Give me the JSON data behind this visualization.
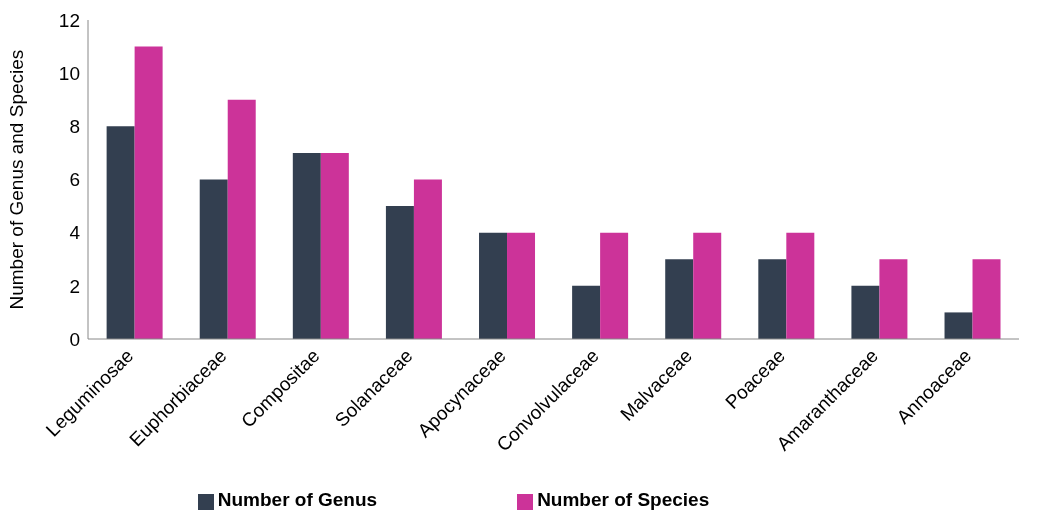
{
  "chart_data": {
    "type": "bar",
    "ylabel": "Number of Genus and Species",
    "categories": [
      "Leguminosae",
      "Euphorbiaceae",
      "Compositae",
      "Solanaceae",
      "Apocynaceae",
      "Convolvulaceae",
      "Malvaceae",
      "Poaceae",
      "Amaranthaceae",
      "Annoaceae"
    ],
    "series": [
      {
        "name": "Number of Genus",
        "color": "#333f50",
        "values": [
          8,
          6,
          7,
          5,
          4,
          2,
          3,
          3,
          2,
          1
        ]
      },
      {
        "name": "Number of Species",
        "color": "#cc3399",
        "values": [
          11,
          9,
          7,
          6,
          4,
          4,
          4,
          4,
          3,
          3
        ]
      }
    ],
    "ylim": [
      0,
      12
    ],
    "yticks": [
      0,
      2,
      4,
      6,
      8,
      10,
      12
    ],
    "grid": false,
    "legend": "bottom"
  }
}
